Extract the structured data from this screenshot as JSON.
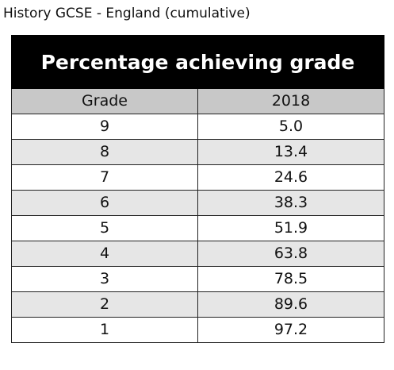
{
  "caption": "History GCSE - England (cumulative)",
  "chart_data": {
    "type": "table",
    "title": "Percentage achieving grade",
    "columns": [
      "Grade",
      "2018"
    ],
    "rows": [
      [
        "9",
        "5.0"
      ],
      [
        "8",
        "13.4"
      ],
      [
        "7",
        "24.6"
      ],
      [
        "6",
        "38.3"
      ],
      [
        "5",
        "51.9"
      ],
      [
        "4",
        "63.8"
      ],
      [
        "3",
        "78.5"
      ],
      [
        "2",
        "89.6"
      ],
      [
        "1",
        "97.2"
      ]
    ],
    "values_numeric": [
      5.0,
      13.4,
      24.6,
      38.3,
      51.9,
      63.8,
      78.5,
      89.6,
      97.2
    ]
  },
  "colors": {
    "banner_background": "#000000",
    "banner_text": "#ffffff",
    "header_background": "#c8c8c8",
    "row_alt_background": "#e6e6e6",
    "row_background": "#ffffff",
    "border": "#222222"
  }
}
